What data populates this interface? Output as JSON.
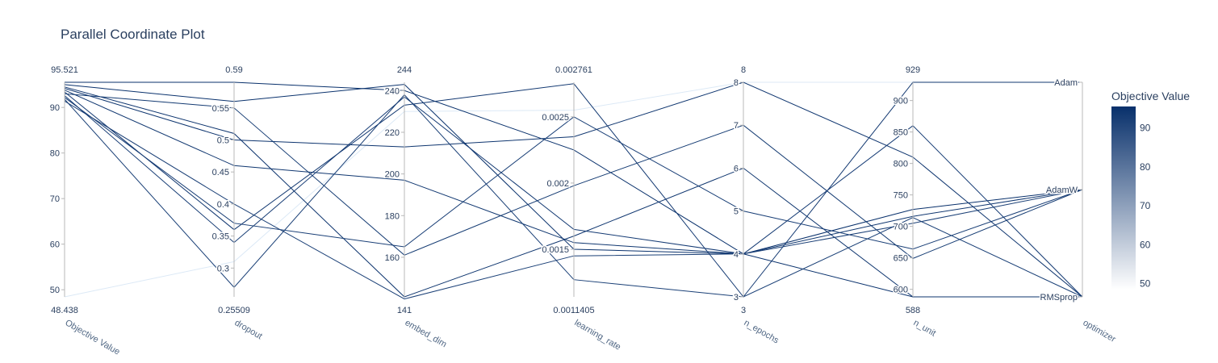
{
  "chart_data": {
    "type": "parallel_coordinates",
    "title": "Parallel Coordinate Plot",
    "colorbar": {
      "title": "Objective Value",
      "range": [
        48.438,
        95.521
      ],
      "ticks": [
        "50",
        "60",
        "70",
        "80",
        "90"
      ],
      "colorscale": [
        "#dce9f6",
        "#08306b"
      ]
    },
    "axes": [
      {
        "name": "Objective Value",
        "range": [
          48.438,
          95.521
        ],
        "range_labels": [
          "48.438",
          "95.521"
        ],
        "ticks": [
          {
            "value": 50,
            "label": "50"
          },
          {
            "value": 60,
            "label": "60"
          },
          {
            "value": 70,
            "label": "70"
          },
          {
            "value": 80,
            "label": "80"
          },
          {
            "value": 90,
            "label": "90"
          }
        ]
      },
      {
        "name": "dropout",
        "range": [
          0.25509,
          0.59
        ],
        "range_labels": [
          "0.25509",
          "0.59"
        ],
        "ticks": [
          {
            "value": 0.3,
            "label": "0.3"
          },
          {
            "value": 0.35,
            "label": "0.35"
          },
          {
            "value": 0.4,
            "label": "0.4"
          },
          {
            "value": 0.45,
            "label": "0.45"
          },
          {
            "value": 0.5,
            "label": "0.5"
          },
          {
            "value": 0.55,
            "label": "0.55"
          }
        ]
      },
      {
        "name": "embed_dim",
        "range": [
          141,
          244
        ],
        "range_labels": [
          "141",
          "244"
        ],
        "ticks": [
          {
            "value": 160,
            "label": "160"
          },
          {
            "value": 180,
            "label": "180"
          },
          {
            "value": 200,
            "label": "200"
          },
          {
            "value": 220,
            "label": "220"
          },
          {
            "value": 240,
            "label": "240"
          }
        ]
      },
      {
        "name": "learning_rate",
        "range": [
          0.0011405,
          0.002761
        ],
        "range_labels": [
          "0.0011405",
          "0.002761"
        ],
        "ticks": [
          {
            "value": 0.0015,
            "label": "0.0015"
          },
          {
            "value": 0.002,
            "label": "0.002"
          },
          {
            "value": 0.0025,
            "label": "0.0025"
          }
        ]
      },
      {
        "name": "n_epochs",
        "range": [
          3,
          8
        ],
        "range_labels": [
          "3",
          "8"
        ],
        "ticks": [
          {
            "value": 3,
            "label": "3"
          },
          {
            "value": 4,
            "label": "4"
          },
          {
            "value": 5,
            "label": "5"
          },
          {
            "value": 6,
            "label": "6"
          },
          {
            "value": 7,
            "label": "7"
          },
          {
            "value": 8,
            "label": "8"
          }
        ]
      },
      {
        "name": "n_unit",
        "range": [
          588,
          929
        ],
        "range_labels": [
          "588",
          "929"
        ],
        "ticks": [
          {
            "value": 600,
            "label": "600"
          },
          {
            "value": 650,
            "label": "650"
          },
          {
            "value": 700,
            "label": "700"
          },
          {
            "value": 750,
            "label": "750"
          },
          {
            "value": 800,
            "label": "800"
          },
          {
            "value": 850,
            "label": "850"
          },
          {
            "value": 900,
            "label": "900"
          }
        ]
      },
      {
        "name": "optimizer",
        "range": [
          0,
          2
        ],
        "range_labels": [
          "",
          ""
        ],
        "ticks": [
          {
            "value": 0,
            "label": "RMSprop"
          },
          {
            "value": 1,
            "label": "AdamW"
          },
          {
            "value": 2,
            "label": "Adam"
          }
        ]
      }
    ],
    "lines": [
      [
        48.438,
        0.31,
        230,
        0.00255,
        8,
        929,
        2
      ],
      [
        95.521,
        0.59,
        240,
        0.00225,
        4,
        727,
        1
      ],
      [
        95.0,
        0.56,
        243,
        0.0015,
        4,
        588,
        0
      ],
      [
        94.5,
        0.51,
        141,
        0.0016,
        6,
        588,
        0
      ],
      [
        94.2,
        0.5,
        213,
        0.00235,
        8,
        810,
        0
      ],
      [
        93.8,
        0.46,
        197,
        0.00155,
        4,
        716,
        1
      ],
      [
        93.4,
        0.36,
        233,
        0.00275,
        3,
        929,
        2
      ],
      [
        93.0,
        0.55,
        161,
        0.00198,
        7,
        649,
        1
      ],
      [
        92.6,
        0.34,
        237,
        0.00165,
        4,
        860,
        0
      ],
      [
        92.2,
        0.37,
        165,
        0.0025,
        5,
        664,
        1
      ],
      [
        91.8,
        0.27,
        238,
        0.00127,
        3,
        714,
        0
      ],
      [
        91.4,
        0.4,
        140,
        0.00145,
        4,
        705,
        1
      ]
    ]
  }
}
